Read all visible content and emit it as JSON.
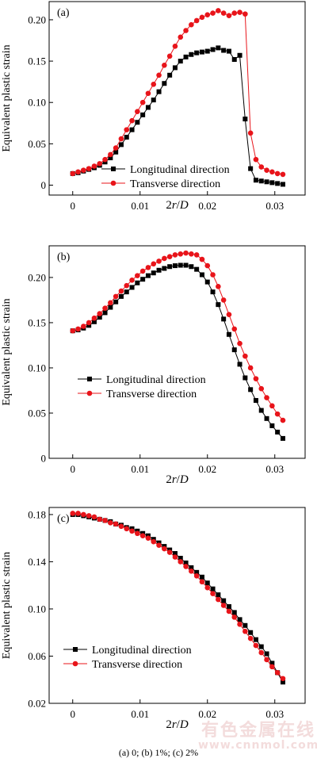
{
  "figure": {
    "caption": "(a) 0; (b) 1%; (c) 2%",
    "watermark": {
      "text_cn": "有色金属在线",
      "text_url": "www.cnnmol.com"
    }
  },
  "chart_data": [
    {
      "type": "line",
      "panel_label": "(a)",
      "xlabel": "2r/D",
      "ylabel": "Equivalent plastic strain",
      "xlim": [
        -0.0035,
        0.0345
      ],
      "ylim": [
        -0.012,
        0.222
      ],
      "xticks": [
        0,
        0.01,
        0.02,
        0.03
      ],
      "xtick_labels": [
        "0",
        "0.01",
        "0.02",
        "0.03"
      ],
      "yticks": [
        0,
        0.05,
        0.1,
        0.15,
        0.2
      ],
      "ytick_labels": [
        "0",
        "0.05",
        "0.10",
        "0.15",
        "0.20"
      ],
      "grid": false,
      "legend_position": "bottom-right",
      "series": [
        {
          "name": "Longitudinal direction",
          "color": "#000000",
          "marker": "square",
          "x": [
            0.0,
            0.0008,
            0.0016,
            0.0024,
            0.0032,
            0.004,
            0.0048,
            0.0056,
            0.0064,
            0.0072,
            0.008,
            0.0088,
            0.0096,
            0.0104,
            0.0112,
            0.012,
            0.0128,
            0.0136,
            0.0144,
            0.0152,
            0.016,
            0.0168,
            0.0176,
            0.0184,
            0.0192,
            0.02,
            0.0208,
            0.0216,
            0.0224,
            0.0232,
            0.024,
            0.0248,
            0.0256,
            0.0264,
            0.0272,
            0.028,
            0.0288,
            0.0296,
            0.0304,
            0.0312
          ],
          "y": [
            0.014,
            0.015,
            0.017,
            0.019,
            0.021,
            0.024,
            0.028,
            0.033,
            0.04,
            0.049,
            0.058,
            0.067,
            0.076,
            0.085,
            0.094,
            0.103,
            0.113,
            0.123,
            0.133,
            0.142,
            0.15,
            0.155,
            0.158,
            0.16,
            0.161,
            0.162,
            0.164,
            0.166,
            0.163,
            0.162,
            0.152,
            0.157,
            0.08,
            0.02,
            0.006,
            0.005,
            0.004,
            0.003,
            0.002,
            0.001
          ]
        },
        {
          "name": "Transverse direction",
          "color": "#e8141a",
          "marker": "circle",
          "x": [
            0.0,
            0.0008,
            0.0016,
            0.0024,
            0.0032,
            0.004,
            0.0048,
            0.0056,
            0.0064,
            0.0072,
            0.008,
            0.0088,
            0.0096,
            0.0104,
            0.0112,
            0.012,
            0.0128,
            0.0136,
            0.0144,
            0.0152,
            0.016,
            0.0168,
            0.0176,
            0.0184,
            0.0192,
            0.02,
            0.0208,
            0.0216,
            0.0224,
            0.0232,
            0.024,
            0.0248,
            0.0256,
            0.0264,
            0.0272,
            0.028,
            0.0288,
            0.0296,
            0.0304,
            0.0312
          ],
          "y": [
            0.014,
            0.016,
            0.018,
            0.02,
            0.023,
            0.026,
            0.031,
            0.037,
            0.045,
            0.056,
            0.067,
            0.078,
            0.089,
            0.1,
            0.111,
            0.122,
            0.133,
            0.145,
            0.156,
            0.168,
            0.179,
            0.187,
            0.194,
            0.199,
            0.203,
            0.206,
            0.208,
            0.211,
            0.208,
            0.205,
            0.208,
            0.209,
            0.207,
            0.063,
            0.031,
            0.022,
            0.018,
            0.016,
            0.014,
            0.013
          ]
        }
      ]
    },
    {
      "type": "line",
      "panel_label": "(b)",
      "xlabel": "2r/D",
      "ylabel": "Equivalent plastic strain",
      "xlim": [
        -0.0035,
        0.0345
      ],
      "ylim": [
        0,
        0.235
      ],
      "xticks": [
        0,
        0.01,
        0.02,
        0.03
      ],
      "xtick_labels": [
        "0",
        "0.01",
        "0.02",
        "0.03"
      ],
      "yticks": [
        0,
        0.05,
        0.1,
        0.15,
        0.2
      ],
      "ytick_labels": [
        "0",
        "0.05",
        "0.10",
        "0.15",
        "0.20"
      ],
      "grid": false,
      "legend_position": "bottom-left",
      "series": [
        {
          "name": "Longitudinal direction",
          "color": "#000000",
          "marker": "square",
          "x": [
            0.0,
            0.0008,
            0.0016,
            0.0024,
            0.0032,
            0.004,
            0.0048,
            0.0056,
            0.0064,
            0.0072,
            0.008,
            0.0088,
            0.0096,
            0.0104,
            0.0112,
            0.012,
            0.0128,
            0.0136,
            0.0144,
            0.0152,
            0.016,
            0.0168,
            0.0176,
            0.0184,
            0.0192,
            0.02,
            0.0208,
            0.0216,
            0.0224,
            0.0232,
            0.024,
            0.0248,
            0.0256,
            0.0264,
            0.0272,
            0.028,
            0.0288,
            0.0296,
            0.0304,
            0.0312
          ],
          "y": [
            0.141,
            0.142,
            0.144,
            0.147,
            0.151,
            0.156,
            0.161,
            0.167,
            0.173,
            0.179,
            0.184,
            0.189,
            0.194,
            0.198,
            0.202,
            0.205,
            0.208,
            0.21,
            0.212,
            0.213,
            0.2135,
            0.2135,
            0.212,
            0.209,
            0.203,
            0.195,
            0.184,
            0.17,
            0.154,
            0.137,
            0.12,
            0.104,
            0.089,
            0.076,
            0.064,
            0.053,
            0.044,
            0.036,
            0.029,
            0.022
          ]
        },
        {
          "name": "Transverse direction",
          "color": "#e8141a",
          "marker": "circle",
          "x": [
            0.0,
            0.0008,
            0.0016,
            0.0024,
            0.0032,
            0.004,
            0.0048,
            0.0056,
            0.0064,
            0.0072,
            0.008,
            0.0088,
            0.0096,
            0.0104,
            0.0112,
            0.012,
            0.0128,
            0.0136,
            0.0144,
            0.0152,
            0.016,
            0.0168,
            0.0176,
            0.0184,
            0.0192,
            0.02,
            0.0208,
            0.0216,
            0.0224,
            0.0232,
            0.024,
            0.0248,
            0.0256,
            0.0264,
            0.0272,
            0.028,
            0.0288,
            0.0296,
            0.0304,
            0.0312
          ],
          "y": [
            0.141,
            0.143,
            0.146,
            0.15,
            0.155,
            0.16,
            0.166,
            0.172,
            0.179,
            0.185,
            0.191,
            0.197,
            0.202,
            0.207,
            0.211,
            0.215,
            0.218,
            0.221,
            0.223,
            0.225,
            0.226,
            0.227,
            0.226,
            0.225,
            0.22,
            0.213,
            0.203,
            0.19,
            0.175,
            0.159,
            0.143,
            0.127,
            0.113,
            0.1,
            0.088,
            0.077,
            0.067,
            0.058,
            0.049,
            0.042
          ]
        }
      ]
    },
    {
      "type": "line",
      "panel_label": "(c)",
      "xlabel": "2r/D",
      "ylabel": "Equivalent plastic strain",
      "xlim": [
        -0.0035,
        0.0345
      ],
      "ylim": [
        0.02,
        0.186
      ],
      "xticks": [
        0,
        0.01,
        0.02,
        0.03
      ],
      "xtick_labels": [
        "0",
        "0.01",
        "0.02",
        "0.03"
      ],
      "yticks": [
        0.02,
        0.06,
        0.1,
        0.14,
        0.18
      ],
      "ytick_labels": [
        "0.02",
        "0.06",
        "0.10",
        "0.14",
        "0.18"
      ],
      "grid": false,
      "legend_position": "bottom-left",
      "series": [
        {
          "name": "Longitudinal direction",
          "color": "#000000",
          "marker": "square",
          "x": [
            0.0,
            0.0008,
            0.0016,
            0.0024,
            0.0032,
            0.004,
            0.0048,
            0.0056,
            0.0064,
            0.0072,
            0.008,
            0.0088,
            0.0096,
            0.0104,
            0.0112,
            0.012,
            0.0128,
            0.0136,
            0.0144,
            0.0152,
            0.016,
            0.0168,
            0.0176,
            0.0184,
            0.0192,
            0.02,
            0.0208,
            0.0216,
            0.0224,
            0.0232,
            0.024,
            0.0248,
            0.0256,
            0.0264,
            0.0272,
            0.028,
            0.0288,
            0.0296,
            0.0304,
            0.0312
          ],
          "y": [
            0.18,
            0.18,
            0.179,
            0.178,
            0.177,
            0.176,
            0.175,
            0.174,
            0.172,
            0.171,
            0.169,
            0.168,
            0.166,
            0.164,
            0.162,
            0.159,
            0.156,
            0.153,
            0.15,
            0.147,
            0.143,
            0.139,
            0.135,
            0.131,
            0.127,
            0.122,
            0.117,
            0.112,
            0.107,
            0.102,
            0.097,
            0.091,
            0.086,
            0.08,
            0.074,
            0.068,
            0.062,
            0.054,
            0.046,
            0.038
          ]
        },
        {
          "name": "Transverse direction",
          "color": "#e8141a",
          "marker": "circle",
          "x": [
            0.0,
            0.0008,
            0.0016,
            0.0024,
            0.0032,
            0.004,
            0.0048,
            0.0056,
            0.0064,
            0.0072,
            0.008,
            0.0088,
            0.0096,
            0.0104,
            0.0112,
            0.012,
            0.0128,
            0.0136,
            0.0144,
            0.0152,
            0.016,
            0.0168,
            0.0176,
            0.0184,
            0.0192,
            0.02,
            0.0208,
            0.0216,
            0.0224,
            0.0232,
            0.024,
            0.0248,
            0.0256,
            0.0264,
            0.0272,
            0.028,
            0.0288,
            0.0296,
            0.0304,
            0.0312
          ],
          "y": [
            0.181,
            0.181,
            0.18,
            0.179,
            0.178,
            0.176,
            0.175,
            0.173,
            0.172,
            0.17,
            0.168,
            0.166,
            0.164,
            0.162,
            0.16,
            0.157,
            0.154,
            0.151,
            0.148,
            0.144,
            0.14,
            0.136,
            0.132,
            0.128,
            0.123,
            0.118,
            0.113,
            0.108,
            0.103,
            0.098,
            0.093,
            0.087,
            0.081,
            0.075,
            0.069,
            0.063,
            0.057,
            0.051,
            0.046,
            0.041
          ]
        }
      ]
    }
  ]
}
